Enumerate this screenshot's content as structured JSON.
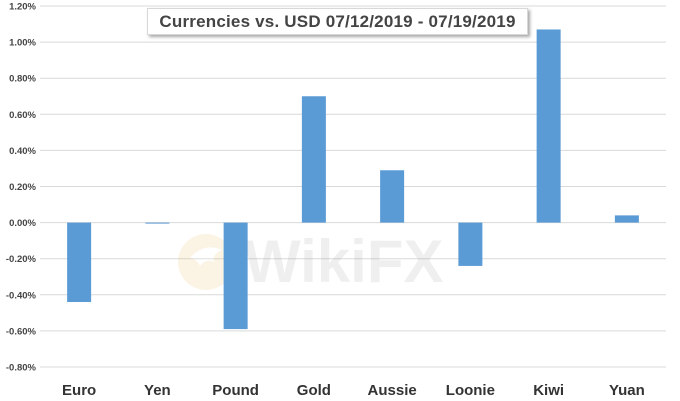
{
  "chart_data": {
    "type": "bar",
    "title": "Currencies vs. USD 07/12/2019 - 07/19/2019",
    "categories": [
      "Euro",
      "Yen",
      "Pound",
      "Gold",
      "Aussie",
      "Loonie",
      "Kiwi",
      "Yuan"
    ],
    "values": [
      -0.44,
      -0.005,
      -0.59,
      0.7,
      0.29,
      -0.24,
      1.07,
      0.04
    ],
    "unit": "%",
    "xlabel": "",
    "ylabel": "",
    "ylim": [
      -0.8,
      1.2
    ],
    "yticks": [
      "1.20%",
      "1.00%",
      "0.80%",
      "0.60%",
      "0.40%",
      "0.20%",
      "0.00%",
      "-0.20%",
      "-0.40%",
      "-0.60%",
      "-0.80%"
    ],
    "grid": true,
    "legend": "none",
    "bar_color": "#5b9bd5",
    "gridline_color": "#d9d9d9",
    "watermark": "WikiFX"
  }
}
